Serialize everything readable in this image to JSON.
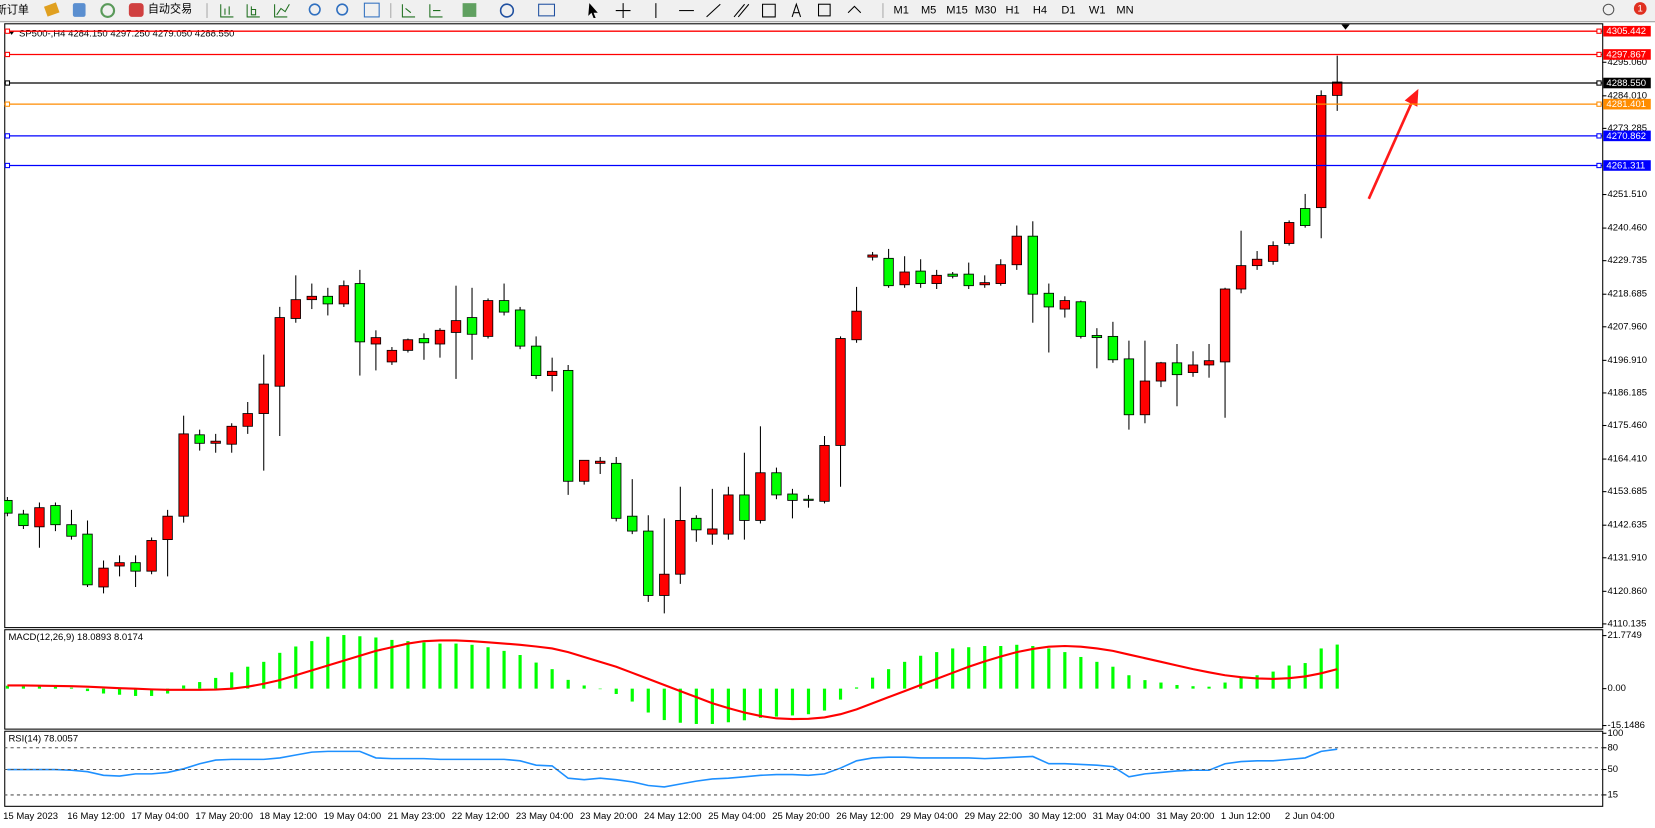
{
  "toolbar": {
    "buttons": [
      "新订单",
      "自动交易"
    ],
    "timeframes": [
      "M1",
      "M5",
      "M15",
      "M30",
      "H1",
      "H4",
      "D1",
      "W1",
      "MN"
    ],
    "badge": "1"
  },
  "chart_data": [
    {
      "type": "candlestick",
      "title": "SP500-,H4  4284.150 4297.250 4279.050 4288.550",
      "categories": [
        "15 May 2023",
        null,
        null,
        null,
        "16 May 12:00",
        null,
        null,
        null,
        "17 May 04:00",
        null,
        null,
        null,
        "17 May 20:00",
        null,
        null,
        null,
        "18 May 12:00",
        null,
        null,
        null,
        "19 May 04:00",
        null,
        null,
        null,
        "21 May 23:00",
        null,
        null,
        null,
        "22 May 12:00",
        null,
        null,
        null,
        "23 May 04:00",
        null,
        null,
        null,
        "23 May 20:00",
        null,
        null,
        null,
        "24 May 12:00",
        null,
        null,
        null,
        "25 May 04:00",
        null,
        null,
        null,
        "25 May 20:00",
        null,
        null,
        null,
        "26 May 12:00",
        null,
        null,
        null,
        "29 May 04:00",
        null,
        null,
        null,
        "29 May 22:00",
        null,
        null,
        null,
        "30 May 12:00",
        null,
        null,
        null,
        "31 May 04:00",
        null,
        null,
        null,
        "31 May 20:00",
        null,
        null,
        null,
        "1 Jun 12:00",
        null,
        null,
        null,
        "2 Jun 04:00",
        null,
        null,
        null
      ],
      "open": [
        4150.8,
        4146.3,
        4142.1,
        4149.1,
        4142.8,
        4139.7,
        4122.3,
        4129.2,
        4130.3,
        4127.5,
        4137.9,
        4145.6,
        4172.4,
        4169.6,
        4169.3,
        4175.2,
        4179.4,
        4188.4,
        4210.7,
        4216.9,
        4218.0,
        4215.5,
        4222.2,
        4202.3,
        4196.4,
        4200.2,
        4204.1,
        4202.3,
        4206.1,
        4211.0,
        4204.8,
        4216.6,
        4213.5,
        4201.6,
        4191.9,
        4193.6,
        4157.1,
        4163.0,
        4163.0,
        4145.6,
        4140.7,
        4119.5,
        4126.5,
        4144.9,
        4139.7,
        4139.7,
        4152.6,
        4144.2,
        4159.9,
        4152.9,
        4151.2,
        4150.5,
        4168.9,
        4203.7,
        4230.9,
        4230.5,
        4221.8,
        4226.3,
        4222.2,
        4225.3,
        4225.3,
        4221.8,
        4222.2,
        4228.4,
        4237.8,
        4219.0,
        4213.8,
        4216.2,
        4205.1,
        4204.8,
        4197.4,
        4179.0,
        4190.1,
        4196.1,
        4192.9,
        4195.4,
        4196.4,
        4220.4,
        4228.1,
        4229.5,
        4235.4,
        4246.9,
        4247.2,
        4284.15
      ],
      "high": [
        4151.9,
        4147.7,
        4150.1,
        4150.1,
        4147.7,
        4144.2,
        4131.0,
        4132.7,
        4132.7,
        4138.6,
        4147.7,
        4178.7,
        4174.1,
        4172.7,
        4176.2,
        4183.2,
        4198.8,
        4214.5,
        4224.9,
        4222.2,
        4220.8,
        4223.2,
        4226.7,
        4206.8,
        4201.3,
        4204.1,
        4205.8,
        4207.5,
        4221.5,
        4220.8,
        4217.3,
        4222.2,
        4214.5,
        4204.8,
        4197.8,
        4195.4,
        4164.0,
        4165.1,
        4165.1,
        4157.8,
        4145.9,
        4144.9,
        4155.3,
        4145.9,
        4154.6,
        4155.3,
        4166.5,
        4175.2,
        4161.6,
        4154.6,
        4152.6,
        4172.0,
        4204.8,
        4221.1,
        4232.6,
        4233.6,
        4231.2,
        4230.2,
        4226.7,
        4226.0,
        4229.1,
        4224.9,
        4230.2,
        4241.3,
        4242.7,
        4222.2,
        4218.0,
        4216.6,
        4207.5,
        4209.6,
        4203.4,
        4203.4,
        4196.4,
        4202.3,
        4199.9,
        4202.3,
        4220.8,
        4239.6,
        4232.9,
        4236.1,
        4243.0,
        4251.7,
        4285.8,
        4297.25
      ],
      "low": [
        4145.6,
        4141.4,
        4135.2,
        4140.7,
        4137.9,
        4122.3,
        4120.2,
        4125.8,
        4122.3,
        4126.5,
        4125.8,
        4143.5,
        4167.2,
        4166.5,
        4166.5,
        4172.7,
        4160.6,
        4172.0,
        4209.3,
        4213.8,
        4211.7,
        4214.5,
        4191.9,
        4193.6,
        4195.4,
        4199.5,
        4197.1,
        4197.8,
        4190.8,
        4197.1,
        4204.1,
        4211.7,
        4200.6,
        4190.8,
        4186.7,
        4152.6,
        4156.0,
        4159.5,
        4143.9,
        4139.7,
        4117.4,
        4113.6,
        4123.3,
        4137.2,
        4136.2,
        4137.9,
        4137.9,
        4143.2,
        4151.2,
        4144.9,
        4148.4,
        4149.8,
        4155.3,
        4202.7,
        4229.8,
        4220.8,
        4220.8,
        4220.8,
        4220.4,
        4223.9,
        4220.4,
        4220.8,
        4221.5,
        4226.7,
        4209.3,
        4199.5,
        4211.0,
        4204.1,
        4194.3,
        4196.1,
        4174.1,
        4176.2,
        4188.1,
        4181.8,
        4191.5,
        4191.2,
        4178.0,
        4219.0,
        4226.7,
        4228.4,
        4234.7,
        4240.6,
        4237.1,
        4279.05
      ],
      "close": [
        4146.6,
        4142.5,
        4148.4,
        4142.8,
        4139.0,
        4123.0,
        4128.5,
        4130.3,
        4127.5,
        4137.6,
        4145.6,
        4172.7,
        4169.6,
        4170.3,
        4175.2,
        4179.4,
        4189.1,
        4211.0,
        4216.9,
        4218.0,
        4215.5,
        4221.5,
        4203.0,
        4204.4,
        4200.2,
        4203.7,
        4202.7,
        4206.8,
        4210.0,
        4205.5,
        4216.6,
        4212.8,
        4201.6,
        4191.9,
        4193.3,
        4157.1,
        4164.0,
        4163.7,
        4144.9,
        4140.7,
        4119.5,
        4126.5,
        4144.2,
        4141.1,
        4141.4,
        4152.6,
        4144.2,
        4159.9,
        4152.6,
        4150.8,
        4150.8,
        4168.9,
        4204.1,
        4213.1,
        4231.6,
        4221.5,
        4226.0,
        4222.2,
        4224.9,
        4224.6,
        4221.5,
        4222.5,
        4228.4,
        4237.8,
        4218.7,
        4214.5,
        4216.6,
        4204.8,
        4204.4,
        4197.1,
        4179.0,
        4190.1,
        4196.1,
        4192.2,
        4195.4,
        4196.8,
        4220.4,
        4228.1,
        4230.2,
        4234.7,
        4242.3,
        4241.3,
        4284.1,
        4288.55
      ],
      "up_color": "#ff0000",
      "down_color": "#00ff00",
      "ylim": [
        4109.09,
        4307.9
      ],
      "yticks": [
        {
          "value": 4295.06,
          "label": "4295.060"
        },
        {
          "value": 4284.01,
          "label": "4284.010"
        },
        4273.285,
        {
          "value": 4251.51,
          "label": "4251.510"
        },
        {
          "value": 4240.46,
          "label": "4240.460"
        },
        4229.735,
        4218.685,
        {
          "value": 4207.96,
          "label": "4207.960"
        },
        {
          "value": 4196.91,
          "label": "4196.910"
        },
        4186.185,
        {
          "value": 4175.46,
          "label": "4175.460"
        },
        {
          "value": 4164.41,
          "label": "4164.410"
        },
        4153.685,
        4142.635,
        {
          "value": 4131.91,
          "label": "4131.910"
        },
        {
          "value": 4120.86,
          "label": "4120.860"
        },
        4110.135
      ],
      "levels": [
        {
          "value": 4305.442,
          "color": "#ff0000"
        },
        {
          "value": 4297.867,
          "color": "#ff0000"
        },
        {
          "value": 4288.55,
          "label": "4288.550",
          "color": "#000000"
        },
        {
          "value": 4281.401,
          "color": "#ff8c00"
        },
        {
          "value": 4270.862,
          "color": "#0000ff"
        },
        {
          "value": 4261.311,
          "color": "#0000ff"
        }
      ]
    },
    {
      "type": "macd",
      "title": "MACD(12,26,9) 18.0893 8.0174",
      "histogram": {
        "color": "#00ff00",
        "values": [
          1.2,
          1.0,
          1.0,
          0.8,
          0.4,
          -1.0,
          -2.0,
          -2.5,
          -3.0,
          -3.0,
          -2.0,
          1.3,
          2.7,
          4.4,
          6.7,
          9.0,
          11.0,
          14.7,
          17.3,
          19.5,
          21.3,
          22.0,
          21.5,
          21.0,
          20.0,
          19.5,
          19.0,
          18.5,
          18.5,
          18.0,
          17.0,
          15.5,
          13.8,
          10.7,
          8.0,
          3.6,
          1.3,
          0.0,
          -2.2,
          -5.3,
          -9.8,
          -12.9,
          -14.0,
          -14.5,
          -14.5,
          -13.8,
          -13.0,
          -12.0,
          -11.5,
          -11.0,
          -10.5,
          -9.0,
          -4.5,
          0.5,
          4.5,
          8.0,
          11.0,
          13.5,
          15.0,
          16.5,
          17.0,
          17.5,
          17.5,
          18.0,
          17.5,
          16.5,
          15.0,
          13.0,
          11.0,
          9.0,
          5.5,
          3.5,
          2.5,
          1.5,
          1.0,
          0.8,
          2.5,
          4.5,
          5.5,
          7.0,
          9.5,
          10.5,
          16.5,
          18.0893
        ]
      },
      "signal": {
        "color": "#ff0000",
        "values": [
          1.3,
          1.3,
          1.2,
          1.1,
          1.0,
          0.8,
          0.5,
          0.2,
          0.0,
          -0.3,
          -0.5,
          -0.5,
          -0.5,
          -0.4,
          0.0,
          0.8,
          2.0,
          3.5,
          5.5,
          7.5,
          9.5,
          11.5,
          13.5,
          15.5,
          17.0,
          18.5,
          19.5,
          19.8,
          19.8,
          19.5,
          19.0,
          18.5,
          18.0,
          17.3,
          16.5,
          15.0,
          13.0,
          11.0,
          9.0,
          6.5,
          4.0,
          1.5,
          -1.0,
          -3.5,
          -6.0,
          -8.0,
          -9.8,
          -11.2,
          -12.2,
          -12.5,
          -12.4,
          -11.8,
          -10.5,
          -8.5,
          -6.0,
          -3.5,
          -1.0,
          1.5,
          4.0,
          6.5,
          9.0,
          11.2,
          13.2,
          15.0,
          16.3,
          17.2,
          17.5,
          17.2,
          16.5,
          15.5,
          14.0,
          12.5,
          11.0,
          9.5,
          8.0,
          6.7,
          5.5,
          4.7,
          4.2,
          4.0,
          4.3,
          5.0,
          6.3,
          8.0174
        ]
      },
      "ylim": [
        -16.4,
        24.4
      ],
      "yticks": [
        21.7749,
        {
          "value": 0,
          "label": "0.00"
        },
        -15.1486
      ]
    },
    {
      "type": "line",
      "title": "RSI(14) 78.0057",
      "color": "#1e90ff",
      "values": [
        50,
        50,
        50,
        50,
        49,
        47,
        42,
        41,
        44,
        44,
        46,
        51,
        58,
        63,
        64,
        64,
        64,
        66,
        70,
        74,
        75,
        75,
        75,
        66,
        65,
        65,
        65,
        64,
        64,
        64,
        64,
        64,
        62,
        56,
        55,
        38,
        36,
        38,
        36,
        33,
        28,
        26,
        30,
        34,
        37,
        38,
        40,
        42,
        43,
        43,
        42,
        44,
        52,
        62,
        66,
        67,
        67,
        66,
        66,
        66,
        66,
        65,
        66,
        67,
        68,
        58,
        58,
        57,
        56,
        54,
        40,
        44,
        46,
        48,
        49,
        49,
        58,
        61,
        62,
        62,
        64,
        66,
        75,
        78.0057
      ],
      "ylim": [
        0,
        103.5
      ],
      "yticks": [
        100,
        80,
        50,
        15
      ],
      "levels": [
        80,
        50,
        15
      ]
    }
  ]
}
